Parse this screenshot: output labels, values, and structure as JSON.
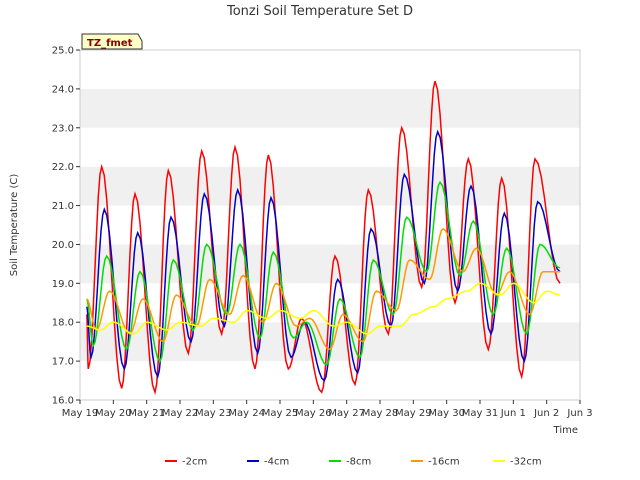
{
  "chart_data": {
    "type": "line",
    "title": "Tonzi Soil Temperature Set D",
    "xlabel": "Time",
    "ylabel": "Soil Temperature (C)",
    "ylim": [
      16.0,
      25.0
    ],
    "yticks": [
      16.0,
      17.0,
      18.0,
      19.0,
      20.0,
      21.0,
      22.0,
      23.0,
      24.0,
      25.0
    ],
    "ytick_labels": [
      "16.0",
      "17.0",
      "18.0",
      "19.0",
      "20.0",
      "21.0",
      "22.0",
      "23.0",
      "24.0",
      "25.0"
    ],
    "xlim": [
      0,
      15
    ],
    "xticks": [
      0,
      1,
      2,
      3,
      4,
      5,
      6,
      7,
      8,
      9,
      10,
      11,
      12,
      13,
      14,
      15
    ],
    "xtick_labels": [
      "May 19",
      "May 20",
      "May 21",
      "May 22",
      "May 23",
      "May 24",
      "May 25",
      "May 26",
      "May 27",
      "May 28",
      "May 29",
      "May 30",
      "May 31",
      "Jun 1",
      "Jun 2",
      "Jun 3"
    ],
    "grid": "horizontal bands",
    "legend_position": "bottom",
    "badge": "TZ_fmet",
    "series": [
      {
        "name": "-2cm",
        "color": "#ff0000",
        "daily_max": [
          22.0,
          21.3,
          21.9,
          22.4,
          22.5,
          22.3,
          18.1,
          19.7,
          21.4,
          23.0,
          24.2,
          22.2,
          21.7,
          22.2
        ],
        "daily_min": [
          16.8,
          16.3,
          16.2,
          17.2,
          17.7,
          16.8,
          16.8,
          16.2,
          16.4,
          17.7,
          18.9,
          18.5,
          17.3,
          16.6
        ],
        "start": 18.2,
        "end": 19.0
      },
      {
        "name": "-4cm",
        "color": "#0000cc",
        "daily_max": [
          20.9,
          20.3,
          20.7,
          21.3,
          21.4,
          21.2,
          18.0,
          19.1,
          20.4,
          21.8,
          22.9,
          21.5,
          20.8,
          21.1
        ],
        "daily_min": [
          17.1,
          16.8,
          16.6,
          17.5,
          17.9,
          17.2,
          17.1,
          16.5,
          16.7,
          17.9,
          19.0,
          18.8,
          17.7,
          17.0
        ],
        "start": 18.4,
        "end": 19.3
      },
      {
        "name": "-8cm",
        "color": "#00dd00",
        "daily_max": [
          19.7,
          19.3,
          19.6,
          20.0,
          20.0,
          19.8,
          18.0,
          18.6,
          19.6,
          20.7,
          21.6,
          20.6,
          19.9,
          20.0
        ],
        "daily_min": [
          17.4,
          17.3,
          17.0,
          17.8,
          18.2,
          17.6,
          17.6,
          16.9,
          17.1,
          18.2,
          19.3,
          19.2,
          18.2,
          17.7
        ],
        "start": 18.6,
        "end": 19.4
      },
      {
        "name": "-16cm",
        "color": "#ff9900",
        "daily_max": [
          18.8,
          18.6,
          18.7,
          19.1,
          19.2,
          19.0,
          18.1,
          18.2,
          18.8,
          19.6,
          20.4,
          19.9,
          19.3,
          19.3
        ],
        "daily_min": [
          17.8,
          17.7,
          17.5,
          17.9,
          18.2,
          18.0,
          17.9,
          17.3,
          17.5,
          18.3,
          19.1,
          19.3,
          18.7,
          18.2
        ],
        "start": 18.6,
        "end": 19.3
      },
      {
        "name": "-32cm",
        "color": "#ffff00",
        "daily_max": [
          18.0,
          18.0,
          18.0,
          18.1,
          18.3,
          18.3,
          18.3,
          18.0,
          17.9,
          18.2,
          18.6,
          19.0,
          19.0,
          18.8
        ],
        "daily_min": [
          17.8,
          17.7,
          17.8,
          17.9,
          18.0,
          18.1,
          18.1,
          17.9,
          17.7,
          17.9,
          18.4,
          18.8,
          18.7,
          18.5
        ],
        "start": 17.9,
        "end": 18.7
      }
    ]
  }
}
